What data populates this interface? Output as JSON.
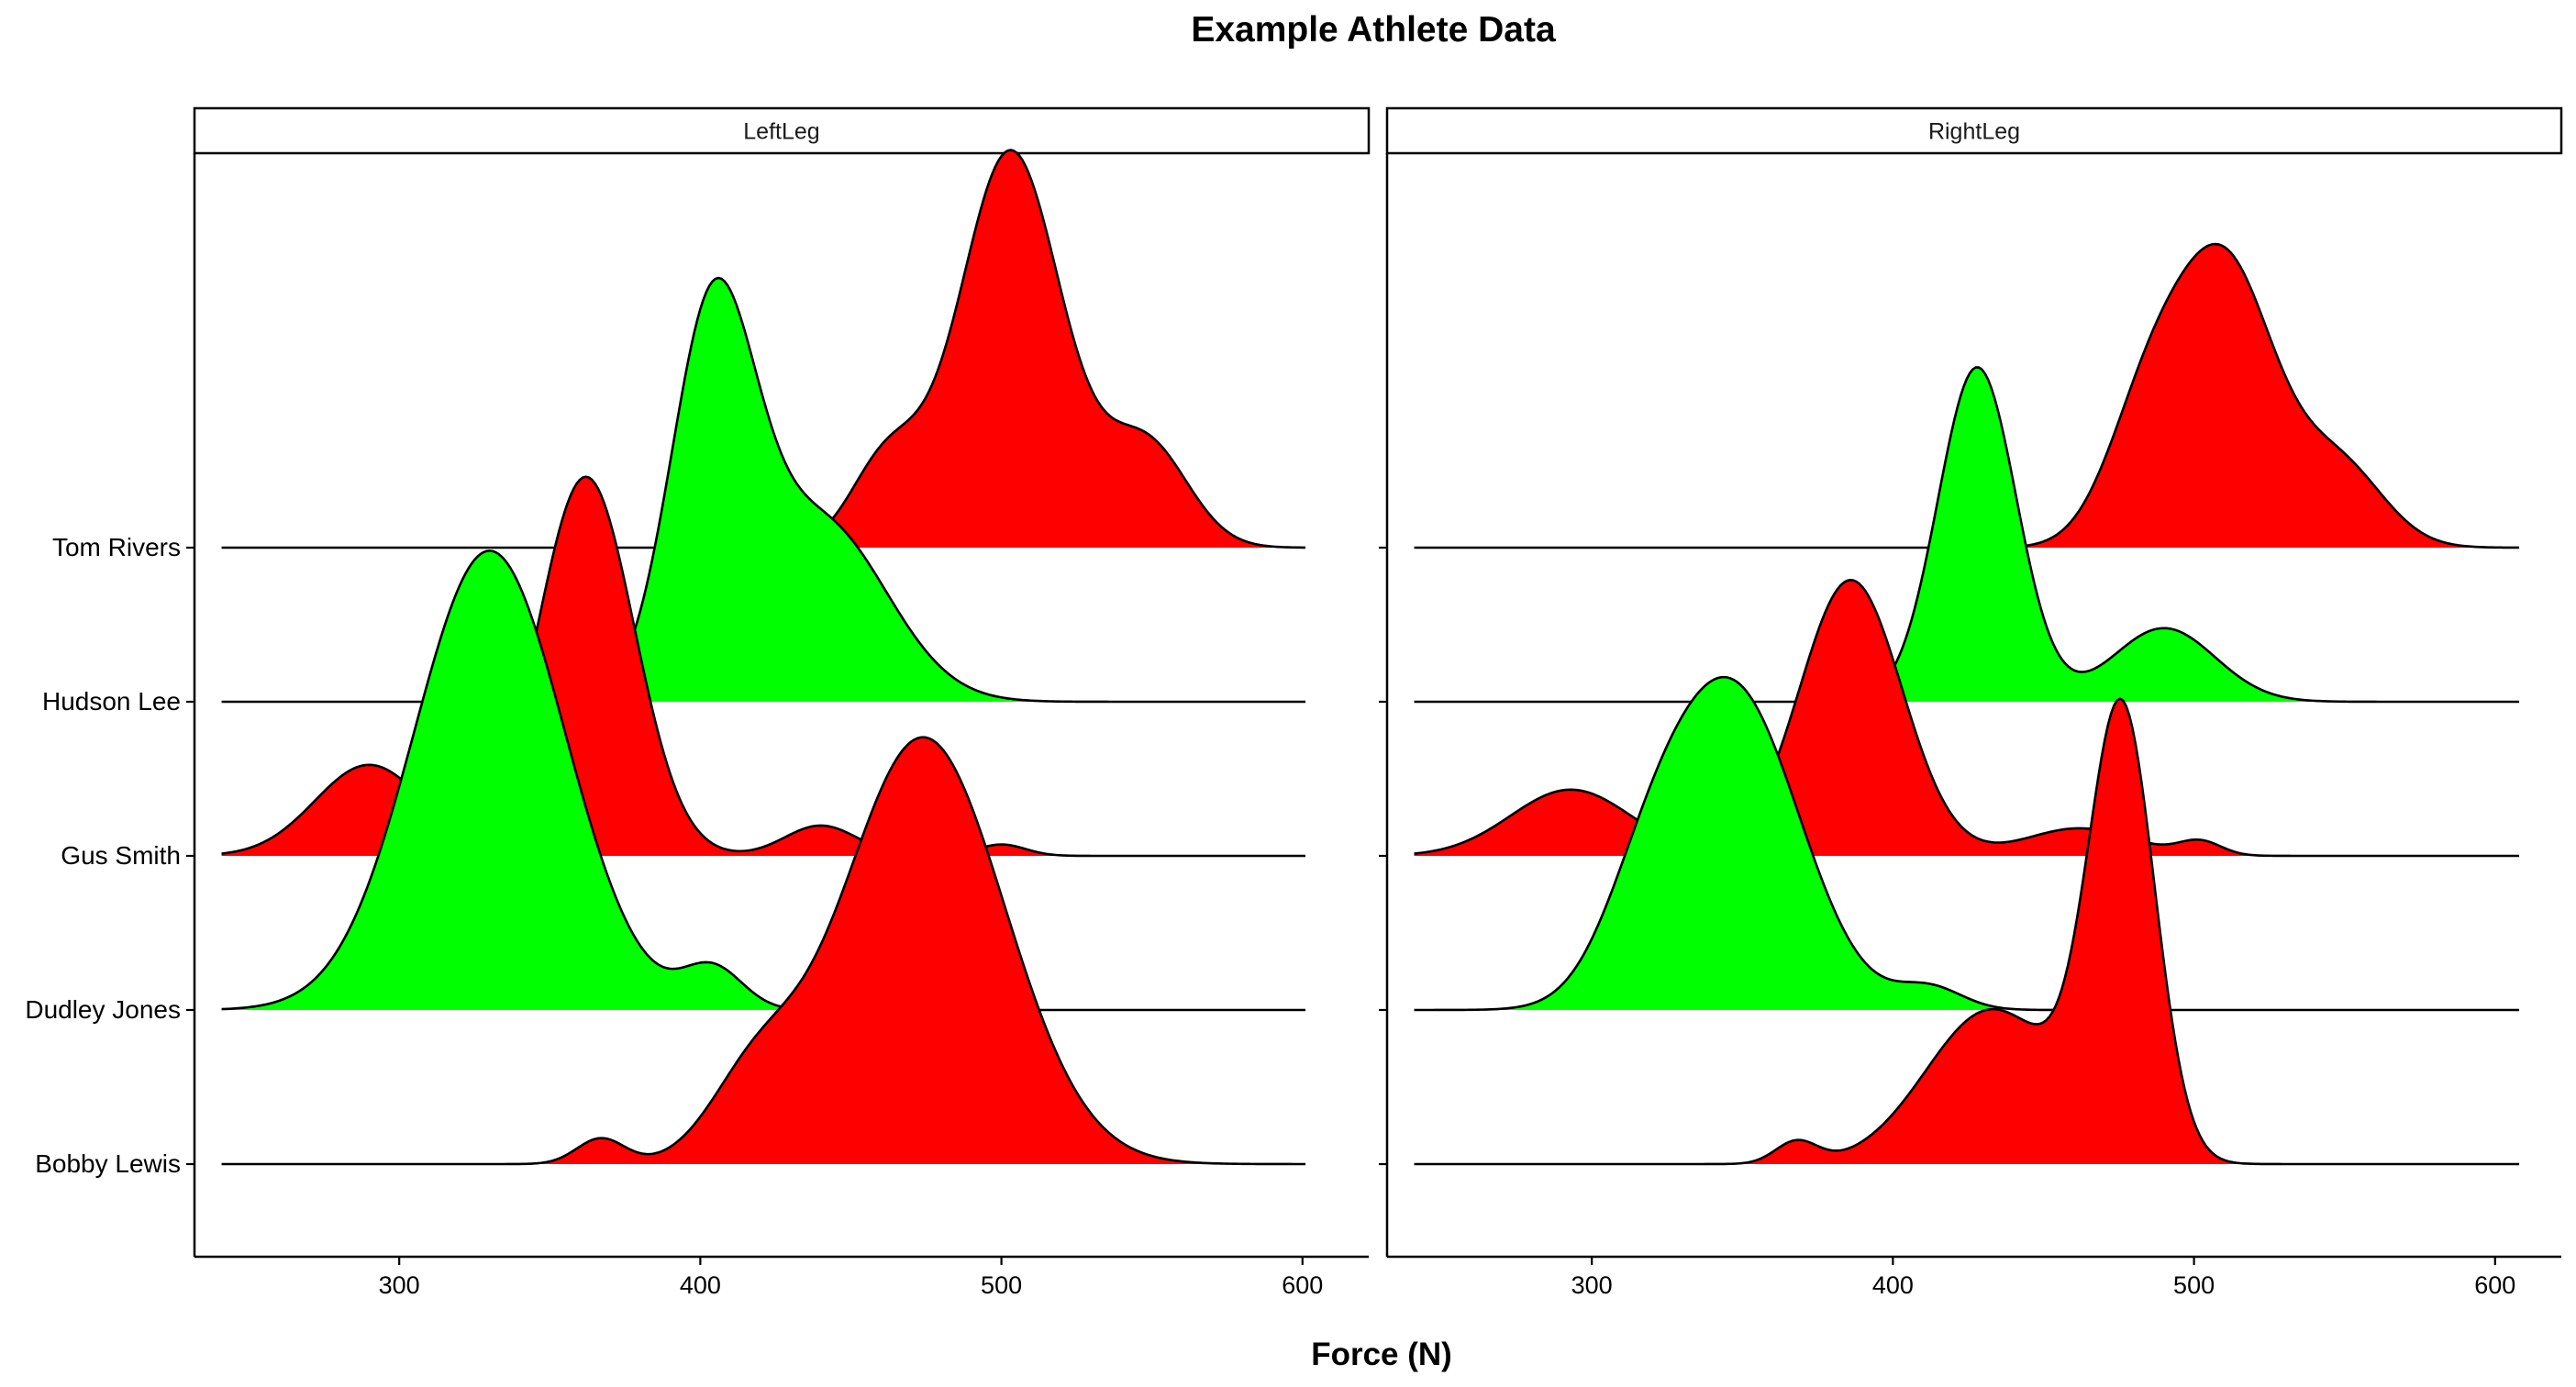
{
  "chart_data": {
    "type": "area",
    "subtype": "ridgeline-density",
    "title": "Example Athlete Data",
    "xlabel": "Force (N)",
    "ylabel": "",
    "xlim": [
      232,
      622
    ],
    "x_ticks": [
      300,
      400,
      500,
      600
    ],
    "athletes": [
      "Bobby Lewis",
      "Dudley Jones",
      "Gus Smith",
      "Hudson Lee",
      "Tom Rivers"
    ],
    "fill_colors": {
      "red": "#ff0000",
      "green": "#00ff00"
    },
    "line_color": "#000000",
    "grid": false,
    "legend": "none",
    "panels": [
      {
        "strip": "LeftLeg",
        "x_range": [
          241,
          601
        ],
        "ridges": [
          {
            "athlete": "Tom Rivers",
            "color": "red",
            "max_height": 2.58,
            "peaks": [
              {
                "mu": 503,
                "sigma": 17,
                "amp": 1.0
              },
              {
                "mu": 462,
                "sigma": 12,
                "amp": 0.22
              },
              {
                "mu": 548,
                "sigma": 14,
                "amp": 0.26
              }
            ]
          },
          {
            "athlete": "Hudson Lee",
            "color": "green",
            "max_height": 2.75,
            "peaks": [
              {
                "mu": 404,
                "sigma": 14,
                "amp": 1.0
              },
              {
                "mu": 440,
                "sigma": 22,
                "amp": 0.48
              }
            ]
          },
          {
            "athlete": "Gus Smith",
            "color": "red",
            "max_height": 2.46,
            "peaks": [
              {
                "mu": 362,
                "sigma": 16,
                "amp": 1.0
              },
              {
                "mu": 290,
                "sigma": 18,
                "amp": 0.24
              },
              {
                "mu": 440,
                "sigma": 12,
                "amp": 0.08
              },
              {
                "mu": 500,
                "sigma": 8,
                "amp": 0.03
              }
            ]
          },
          {
            "athlete": "Dudley Jones",
            "color": "green",
            "max_height": 2.98,
            "peaks": [
              {
                "mu": 330,
                "sigma": 25,
                "amp": 1.0
              },
              {
                "mu": 404,
                "sigma": 10,
                "amp": 0.09
              }
            ]
          },
          {
            "athlete": "Bobby Lewis",
            "color": "red",
            "max_height": 2.77,
            "peaks": [
              {
                "mu": 474,
                "sigma": 27,
                "amp": 1.0
              },
              {
                "mu": 418,
                "sigma": 15,
                "amp": 0.18
              },
              {
                "mu": 367,
                "sigma": 8,
                "amp": 0.06
              }
            ]
          }
        ]
      },
      {
        "strip": "RightLeg",
        "x_range": [
          241,
          608
        ],
        "ridges": [
          {
            "athlete": "Tom Rivers",
            "color": "red",
            "max_height": 1.97,
            "peaks": [
              {
                "mu": 511,
                "sigma": 16,
                "amp": 1.0
              },
              {
                "mu": 485,
                "sigma": 14,
                "amp": 0.5
              },
              {
                "mu": 548,
                "sigma": 15,
                "amp": 0.3
              }
            ]
          },
          {
            "athlete": "Hudson Lee",
            "color": "green",
            "max_height": 2.17,
            "peaks": [
              {
                "mu": 428,
                "sigma": 13,
                "amp": 1.0
              },
              {
                "mu": 490,
                "sigma": 17,
                "amp": 0.22
              }
            ]
          },
          {
            "athlete": "Gus Smith",
            "color": "red",
            "max_height": 1.79,
            "peaks": [
              {
                "mu": 386,
                "sigma": 17,
                "amp": 1.0
              },
              {
                "mu": 293,
                "sigma": 20,
                "amp": 0.24
              },
              {
                "mu": 462,
                "sigma": 18,
                "amp": 0.1
              },
              {
                "mu": 502,
                "sigma": 7,
                "amp": 0.05
              }
            ]
          },
          {
            "athlete": "Dudley Jones",
            "color": "green",
            "max_height": 2.16,
            "peaks": [
              {
                "mu": 347,
                "sigma": 22,
                "amp": 1.0
              },
              {
                "mu": 318,
                "sigma": 15,
                "amp": 0.25
              },
              {
                "mu": 412,
                "sigma": 11,
                "amp": 0.07
              }
            ]
          },
          {
            "athlete": "Bobby Lewis",
            "color": "red",
            "max_height": 3.02,
            "peaks": [
              {
                "mu": 476,
                "sigma": 11,
                "amp": 1.0
              },
              {
                "mu": 433,
                "sigma": 22,
                "amp": 0.35
              },
              {
                "mu": 368,
                "sigma": 7,
                "amp": 0.05
              }
            ]
          }
        ]
      }
    ]
  }
}
